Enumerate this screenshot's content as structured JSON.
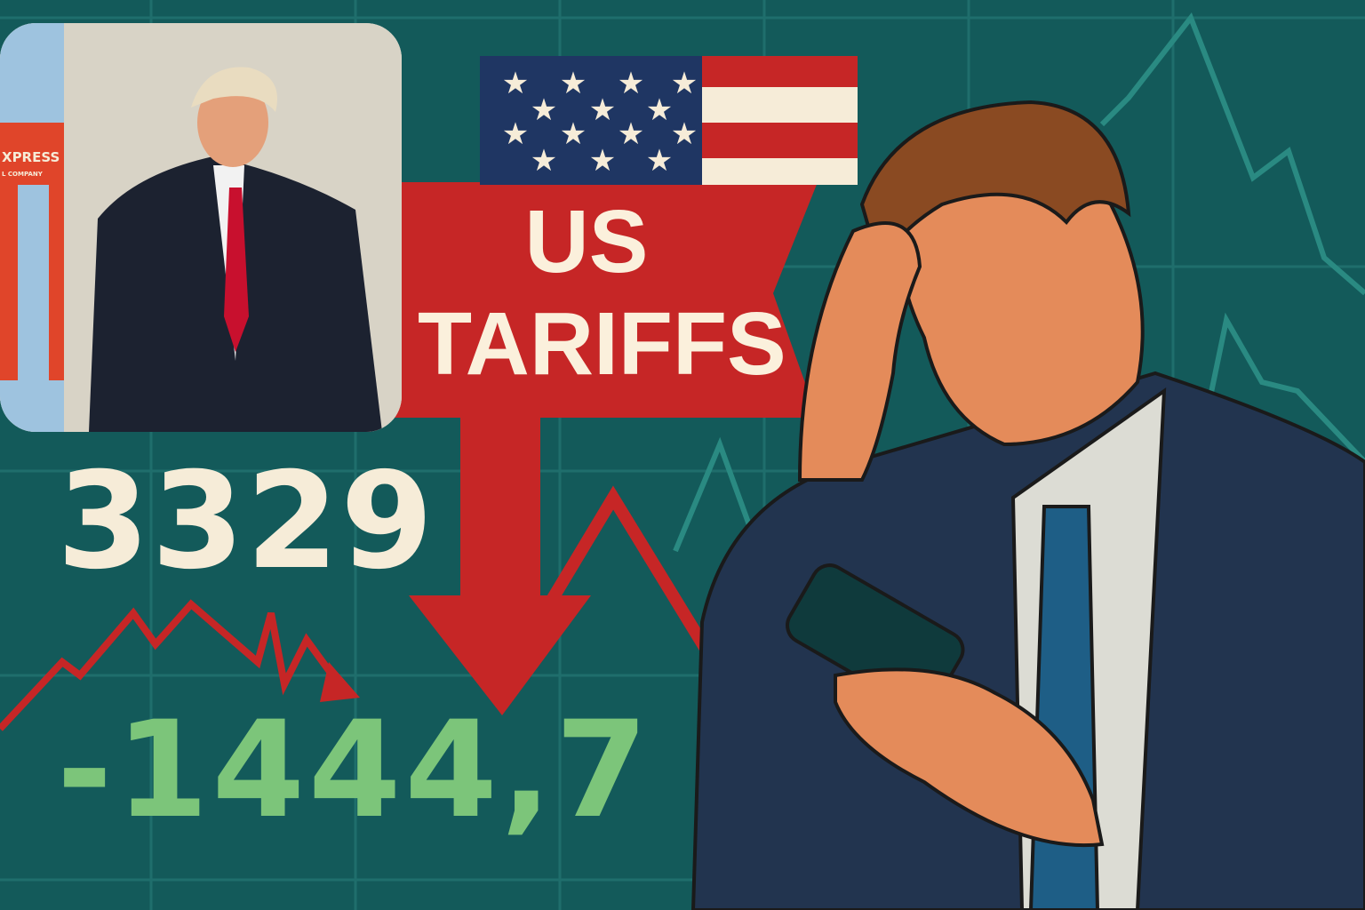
{
  "headline": {
    "line1": "US",
    "line2": "TARIFFS"
  },
  "figures": {
    "index_value": "3329",
    "change_value": "-1444,7"
  },
  "photo": {
    "sign_text_1": "XPRESS",
    "sign_text_2": "L COMPANY"
  },
  "colors": {
    "background": "#135a5a",
    "banner_red": "#c62626",
    "positive_green": "#7cc57a",
    "cream": "#f6ecd8",
    "flag_blue": "#1f3663"
  },
  "icons": [
    "us-flag-icon",
    "down-arrow-icon",
    "stock-chart-line"
  ]
}
